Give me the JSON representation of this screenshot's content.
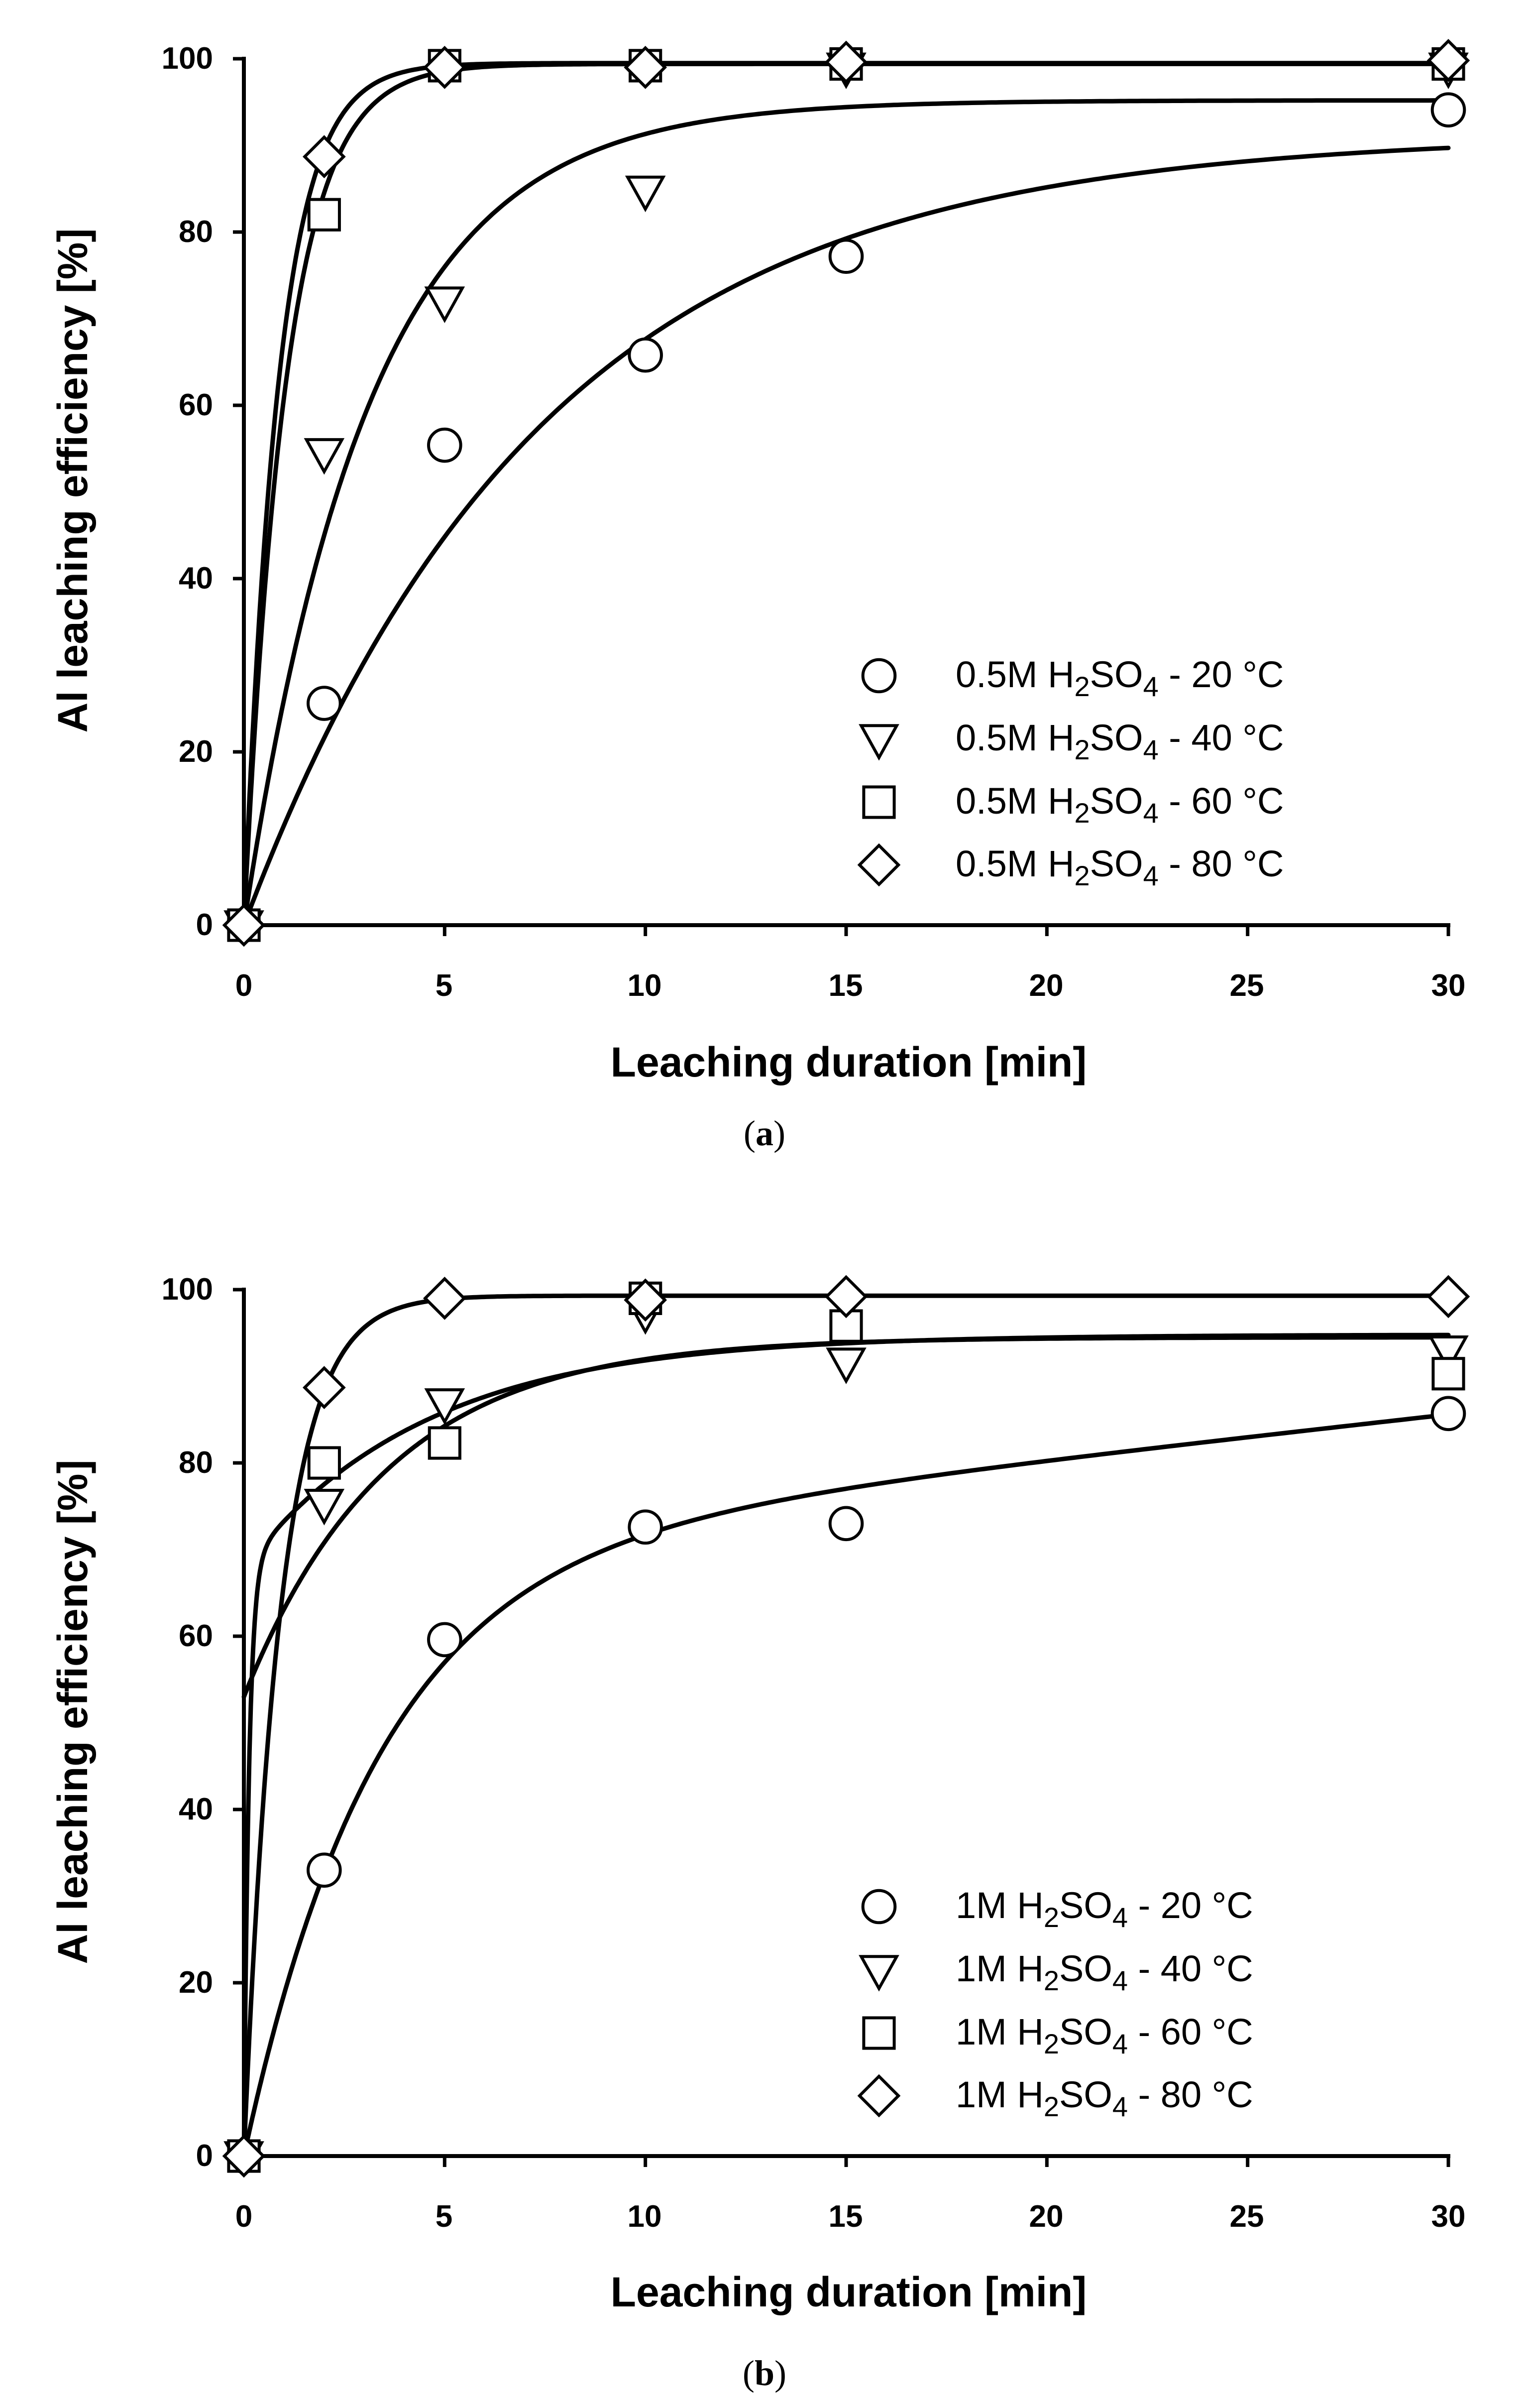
{
  "chart_data": [
    {
      "type": "scatter",
      "panel": "a",
      "caption_open": "(",
      "caption_letter": "a",
      "caption_close": ")",
      "xlabel": "Leaching duration [min]",
      "ylabel": "Al leaching efficiency [%]",
      "xlim": [
        0,
        30
      ],
      "ylim": [
        0,
        100
      ],
      "xticks": [
        0,
        5,
        10,
        15,
        20,
        25,
        30
      ],
      "yticks": [
        0,
        20,
        40,
        60,
        80,
        100
      ],
      "legend_position": "bottom-right",
      "series": [
        {
          "name": "0.5M H2SO4 - 20 °C",
          "label_pre": "0.5M H",
          "label_sub1": "2",
          "label_mid": "SO",
          "label_sub2": "4",
          "label_post": " - 20 °C",
          "marker": "circle",
          "x": [
            0,
            2,
            5,
            10,
            15,
            30
          ],
          "y": [
            0,
            25.6,
            55.4,
            65.8,
            77.2,
            94.1
          ],
          "fit": {
            "a": 91.3,
            "k": 0.135
          }
        },
        {
          "name": "0.5M H2SO4 - 40 °C",
          "label_pre": "0.5M H",
          "label_sub1": "2",
          "label_mid": "SO",
          "label_sub2": "4",
          "label_post": " - 40 °C",
          "marker": "triangle-down",
          "x": [
            0,
            2,
            5,
            10,
            15,
            30
          ],
          "y": [
            0,
            54.5,
            72.0,
            84.8,
            99.0,
            99.0
          ],
          "fit": {
            "a": 95.2,
            "k": 0.32
          }
        },
        {
          "name": "0.5M H2SO4 - 60 °C",
          "label_pre": "0.5M H",
          "label_sub1": "2",
          "label_mid": "SO",
          "label_sub2": "4",
          "label_post": " - 60 °C",
          "marker": "square",
          "x": [
            0,
            2,
            5,
            10,
            15,
            30
          ],
          "y": [
            0,
            82.0,
            99.2,
            99.2,
            99.4,
            99.4
          ],
          "fit": {
            "a": 99.4,
            "k": 0.95
          }
        },
        {
          "name": "0.5M H2SO4 - 80 °C",
          "label_pre": "0.5M H",
          "label_sub1": "2",
          "label_mid": "SO",
          "label_sub2": "4",
          "label_post": " - 80 °C",
          "marker": "diamond",
          "x": [
            0,
            2,
            5,
            10,
            15,
            30
          ],
          "y": [
            0,
            88.7,
            99.0,
            99.0,
            99.6,
            99.8
          ],
          "fit": {
            "a": 99.5,
            "k": 1.15
          }
        }
      ]
    },
    {
      "type": "scatter",
      "panel": "b",
      "caption_open": "(",
      "caption_letter": "b",
      "caption_close": ")",
      "xlabel": "Leaching duration [min]",
      "ylabel": "Al leaching efficiency [%]",
      "xlim": [
        0,
        30
      ],
      "ylim": [
        0,
        100
      ],
      "xticks": [
        0,
        5,
        10,
        15,
        20,
        25,
        30
      ],
      "yticks": [
        0,
        20,
        40,
        60,
        80,
        100
      ],
      "legend_position": "bottom-right",
      "series": [
        {
          "name": "1M H2SO4 - 20 °C",
          "label_pre": "1M H",
          "label_sub1": "2",
          "label_mid": "SO",
          "label_sub2": "4",
          "label_post": " - 20 °C",
          "marker": "circle",
          "x": [
            0,
            2,
            5,
            10,
            15,
            30
          ],
          "y": [
            0,
            33.0,
            59.6,
            72.6,
            73.0,
            85.7
          ],
          "fit": {
            "a": 70.0,
            "k": 0.3,
            "c": 0.52
          }
        },
        {
          "name": "1M H2SO4 - 40 °C",
          "label_pre": "1M H",
          "label_sub1": "2",
          "label_mid": "SO",
          "label_sub2": "4",
          "label_post": " - 40 °C",
          "marker": "triangle-down",
          "x": [
            0,
            2,
            5,
            10,
            15,
            30
          ],
          "y": [
            0,
            75.3,
            86.9,
            97.3,
            91.6,
            93.0
          ],
          "fit": {
            "a0": 53,
            "a": 41.5,
            "k": 0.28
          }
        },
        {
          "name": "1M H2SO4 - 60 °C",
          "label_pre": "1M H",
          "label_sub1": "2",
          "label_mid": "SO",
          "label_sub2": "4",
          "label_post": " - 60 °C",
          "marker": "square",
          "x": [
            0,
            2,
            5,
            10,
            15,
            30
          ],
          "y": [
            0,
            80.0,
            82.3,
            99.0,
            95.8,
            90.3
          ],
          "fit": {
            "s": 68,
            "s2": 26.8,
            "k": 0.22
          }
        },
        {
          "name": "1M H2SO4 - 80 °C",
          "label_pre": "1M H",
          "label_sub1": "2",
          "label_mid": "SO",
          "label_sub2": "4",
          "label_post": " - 80 °C",
          "marker": "diamond",
          "x": [
            0,
            2,
            5,
            10,
            15,
            30
          ],
          "y": [
            0,
            88.7,
            99.0,
            98.8,
            99.2,
            99.2
          ],
          "fit": {
            "a": 99.3,
            "k": 1.1
          }
        }
      ]
    }
  ]
}
